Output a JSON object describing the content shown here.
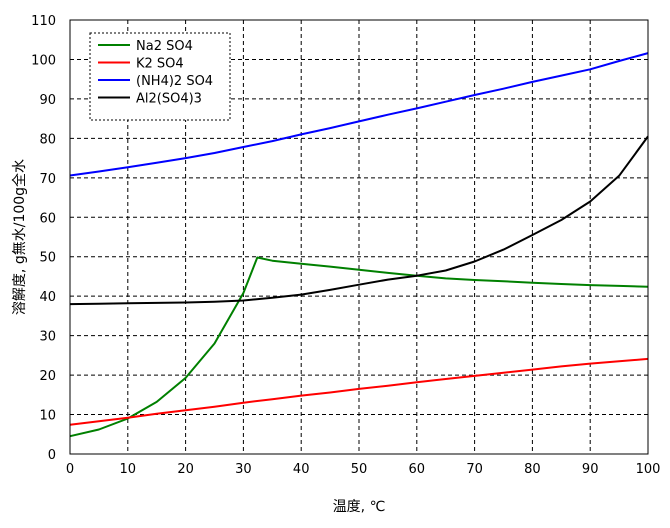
{
  "chart_data": {
    "type": "line",
    "title": "",
    "xlabel": "温度, ℃",
    "ylabel": "溶解度, g無水/100g全水",
    "xlim": [
      0,
      100
    ],
    "ylim": [
      0,
      110
    ],
    "xticks": [
      0,
      10,
      20,
      30,
      40,
      50,
      60,
      70,
      80,
      90,
      100
    ],
    "yticks": [
      0,
      10,
      20,
      30,
      40,
      50,
      60,
      70,
      80,
      90,
      100,
      110
    ],
    "grid": true,
    "grid_style": "dashed",
    "legend_position": "top-left",
    "series": [
      {
        "name": "Na2 SO4",
        "color": "#008000",
        "points": [
          [
            0,
            4.5
          ],
          [
            5,
            6.2
          ],
          [
            10,
            9.0
          ],
          [
            15,
            13.2
          ],
          [
            20,
            19.3
          ],
          [
            25,
            28.0
          ],
          [
            30,
            40.8
          ],
          [
            32.4,
            49.8
          ],
          [
            35,
            49.0
          ],
          [
            40,
            48.2
          ],
          [
            45,
            47.5
          ],
          [
            50,
            46.7
          ],
          [
            55,
            45.9
          ],
          [
            60,
            45.2
          ],
          [
            65,
            44.5
          ],
          [
            70,
            44.1
          ],
          [
            75,
            43.8
          ],
          [
            80,
            43.4
          ],
          [
            85,
            43.1
          ],
          [
            90,
            42.8
          ],
          [
            95,
            42.6
          ],
          [
            100,
            42.4
          ]
        ]
      },
      {
        "name": "K2 SO4",
        "color": "#ff0000",
        "points": [
          [
            0,
            7.4
          ],
          [
            5,
            8.3
          ],
          [
            10,
            9.2
          ],
          [
            15,
            10.2
          ],
          [
            20,
            11.1
          ],
          [
            25,
            12.0
          ],
          [
            30,
            13.0
          ],
          [
            35,
            13.9
          ],
          [
            40,
            14.8
          ],
          [
            45,
            15.6
          ],
          [
            50,
            16.5
          ],
          [
            55,
            17.3
          ],
          [
            60,
            18.2
          ],
          [
            65,
            19.0
          ],
          [
            70,
            19.8
          ],
          [
            75,
            20.6
          ],
          [
            80,
            21.4
          ],
          [
            85,
            22.2
          ],
          [
            90,
            22.9
          ],
          [
            95,
            23.5
          ],
          [
            100,
            24.1
          ]
        ]
      },
      {
        "name": "(NH4)2 SO4",
        "color": "#0000ff",
        "points": [
          [
            0,
            70.6
          ],
          [
            5,
            71.6
          ],
          [
            10,
            72.7
          ],
          [
            15,
            73.8
          ],
          [
            20,
            75.0
          ],
          [
            25,
            76.3
          ],
          [
            30,
            77.8
          ],
          [
            35,
            79.3
          ],
          [
            40,
            81.0
          ],
          [
            45,
            82.6
          ],
          [
            50,
            84.3
          ],
          [
            55,
            86.0
          ],
          [
            60,
            87.6
          ],
          [
            65,
            89.3
          ],
          [
            70,
            91.0
          ],
          [
            75,
            92.6
          ],
          [
            80,
            94.3
          ],
          [
            85,
            95.9
          ],
          [
            90,
            97.5
          ],
          [
            95,
            99.6
          ],
          [
            100,
            101.6
          ]
        ]
      },
      {
        "name": "Al2(SO4)3",
        "color": "#000000",
        "points": [
          [
            0,
            38.0
          ],
          [
            5,
            38.1
          ],
          [
            10,
            38.2
          ],
          [
            15,
            38.3
          ],
          [
            20,
            38.4
          ],
          [
            25,
            38.6
          ],
          [
            30,
            38.9
          ],
          [
            35,
            39.6
          ],
          [
            40,
            40.4
          ],
          [
            45,
            41.6
          ],
          [
            50,
            42.9
          ],
          [
            55,
            44.2
          ],
          [
            60,
            45.2
          ],
          [
            65,
            46.5
          ],
          [
            70,
            48.8
          ],
          [
            75,
            51.8
          ],
          [
            80,
            55.5
          ],
          [
            85,
            59.3
          ],
          [
            90,
            64.0
          ],
          [
            95,
            70.5
          ],
          [
            100,
            80.5
          ]
        ]
      }
    ]
  }
}
